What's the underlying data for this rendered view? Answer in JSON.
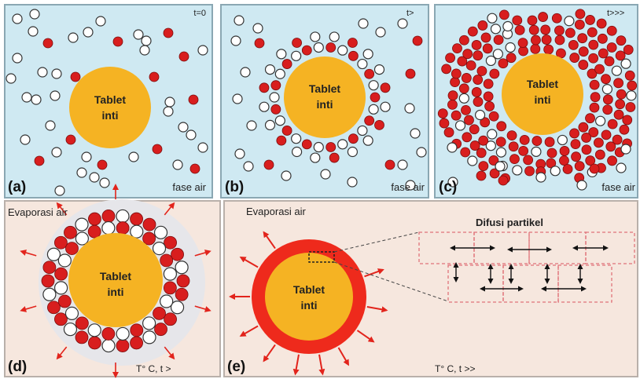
{
  "panels": {
    "a": {
      "label": "(a)",
      "time": "t=0",
      "core_text": [
        "Tablet",
        "inti"
      ],
      "phase": "fase air"
    },
    "b": {
      "label": "(b)",
      "time": "t>",
      "core_text": [
        "Tablet",
        "inti"
      ],
      "phase": "fase air"
    },
    "c": {
      "label": "(c)",
      "time": "t>>>",
      "core_text": [
        "Tablet",
        "inti"
      ],
      "phase": "fase air"
    },
    "d": {
      "label": "(d)",
      "caption": "Evaporasi air",
      "core_text": [
        "Tablet",
        "inti"
      ],
      "condition": "T° C,  t >"
    },
    "e": {
      "label": "(e)",
      "caption": "Evaporasi air",
      "core_text": [
        "Tablet",
        "inti"
      ],
      "condition": "T° C,  t >>",
      "inset_title": "Difusi partikel"
    }
  },
  "colors": {
    "water_bg": "#cfe9f2",
    "heat_bg": "#f6e7de",
    "core": "#f5b323",
    "particle_red": "#d81e1e",
    "coating": "#ee2a1c",
    "arrow": "#e2241c",
    "inset_dash": "#e0737a"
  }
}
